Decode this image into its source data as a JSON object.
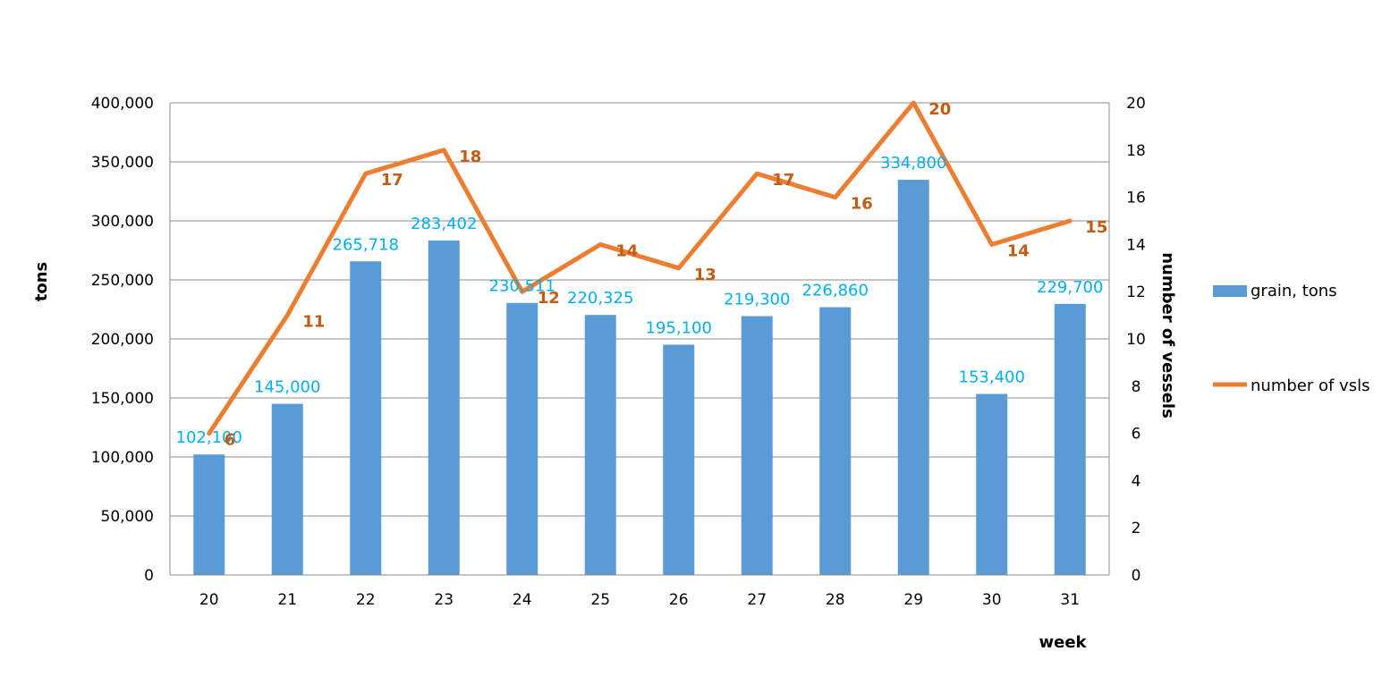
{
  "chart_data": {
    "type": "bar",
    "title": "",
    "categories": [
      "20",
      "21",
      "22",
      "23",
      "24",
      "25",
      "26",
      "27",
      "28",
      "29",
      "30",
      "31"
    ],
    "xlabel": "week",
    "ylabel": "tons",
    "y2label": "number of vessels",
    "ylim": [
      0,
      400000
    ],
    "yticks": [
      "0",
      "50,000",
      "100,000",
      "150,000",
      "200,000",
      "250,000",
      "300,000",
      "350,000",
      "400,000"
    ],
    "y2lim": [
      0,
      20
    ],
    "y2ticks": [
      "0",
      "2",
      "4",
      "6",
      "8",
      "10",
      "12",
      "14",
      "16",
      "18",
      "20"
    ],
    "grid": true,
    "legend_position": "right",
    "series": [
      {
        "name": "grain, tons",
        "type": "bar",
        "axis": "left",
        "color": "#5B9BD5",
        "label_color": "#00B0F0",
        "values": [
          102100,
          145000,
          265718,
          283402,
          230511,
          220325,
          195100,
          219300,
          226860,
          334800,
          153400,
          229700
        ],
        "labels": [
          "102,100",
          "145,000",
          "265,718",
          "283,402",
          "230,511",
          "220,325",
          "195,100",
          "219,300",
          "226,860",
          "334,800",
          "153,400",
          "229,700"
        ]
      },
      {
        "name": "number of vsls",
        "type": "line",
        "axis": "right",
        "color": "#ED7D31",
        "label_color": "#C55A11",
        "values": [
          6,
          11,
          17,
          18,
          12,
          14,
          13,
          17,
          16,
          20,
          14,
          15
        ],
        "labels": [
          "6",
          "11",
          "17",
          "18",
          "12",
          "14",
          "13",
          "17",
          "16",
          "20",
          "14",
          "15"
        ]
      }
    ]
  }
}
